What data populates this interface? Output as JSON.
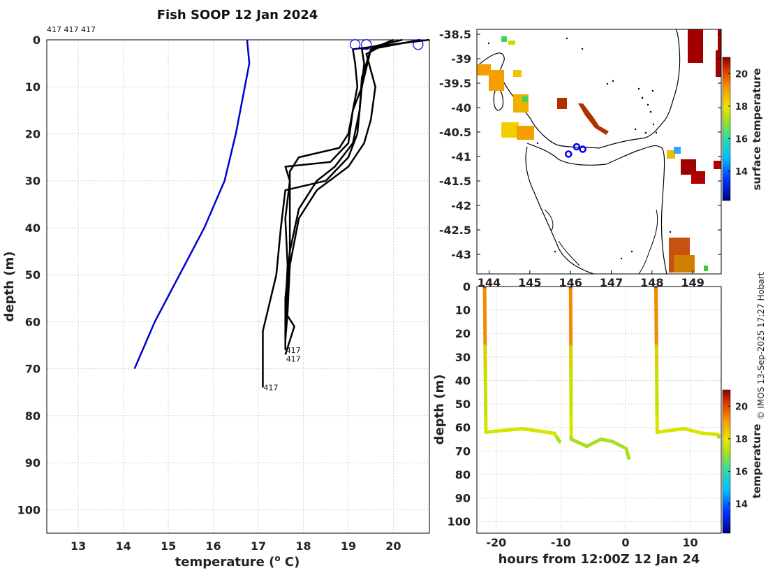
{
  "title": "Fish SOOP 12 Jan 2024",
  "top_label": "417 417 417",
  "copyright": "© IMOS 13-Sep-2025 17:27 Hobart",
  "colors": {
    "profile": "#000000",
    "climatology": "#0000d0",
    "marker": "#0000ee",
    "land": "#000000"
  },
  "chart_data": [
    {
      "name": "temperature-profiles",
      "type": "line",
      "title": "Fish SOOP 12 Jan 2024",
      "xlabel": "temperature (",
      "xlabel_sup": "o",
      "xlabel_end": " C)",
      "ylabel": "depth (m)",
      "xlim": [
        12.3,
        20.8
      ],
      "ylim": [
        105,
        0
      ],
      "xticks": [
        13,
        14,
        15,
        16,
        17,
        18,
        19,
        20
      ],
      "yticks": [
        0,
        10,
        20,
        30,
        40,
        50,
        60,
        70,
        80,
        90,
        100
      ],
      "grid": true,
      "climatology": {
        "name": "climatology",
        "temp": [
          16.75,
          16.8,
          16.7,
          16.5,
          16.25,
          15.8,
          15.25,
          14.7,
          14.25
        ],
        "depth": [
          0,
          5,
          10,
          20,
          30,
          40,
          50,
          60,
          70
        ]
      },
      "series": [
        {
          "name": "profile-1",
          "label": "417",
          "temp": [
            20.2,
            19.3,
            19.35,
            19.3,
            19.1,
            19.0,
            18.8,
            17.9,
            17.7,
            17.7,
            17.7,
            17.65,
            17.6,
            17.6
          ],
          "depth": [
            0,
            2,
            5,
            10,
            15,
            20,
            23,
            25,
            28,
            35,
            45,
            55,
            62,
            66
          ]
        },
        {
          "name": "profile-2",
          "label": "417",
          "temp": [
            20.8,
            19.1,
            19.15,
            19.2,
            19.1,
            19.0,
            18.6,
            17.6,
            17.7,
            17.6,
            17.65,
            17.6,
            17.8,
            17.6
          ],
          "depth": [
            0,
            2,
            5,
            10,
            15,
            22,
            26,
            27,
            30,
            38,
            48,
            58,
            61,
            67
          ]
        },
        {
          "name": "profile-3",
          "label": "417",
          "temp": [
            20.0,
            19.5,
            19.3,
            19.2,
            19.0,
            18.5,
            17.6,
            17.5,
            17.4,
            17.2,
            17.1,
            17.1,
            17.1
          ],
          "depth": [
            0,
            2,
            10,
            20,
            25,
            30,
            32,
            40,
            50,
            58,
            62,
            68,
            74
          ]
        },
        {
          "name": "profile-4",
          "label": "",
          "temp": [
            20.6,
            19.5,
            19.3,
            19.25,
            19.1,
            18.7,
            18.3,
            17.9,
            17.7,
            17.6,
            17.6
          ],
          "depth": [
            0,
            2,
            8,
            15,
            22,
            27,
            30,
            36,
            45,
            55,
            63
          ]
        },
        {
          "name": "profile-5",
          "label": "",
          "temp": [
            20.0,
            19.4,
            19.6,
            19.5,
            19.35,
            19.0,
            18.3,
            17.9,
            17.7,
            17.65,
            17.6
          ],
          "depth": [
            0,
            3,
            10,
            17,
            22,
            27,
            32,
            38,
            48,
            58,
            64
          ]
        }
      ],
      "markers": [
        {
          "temp": 19.15,
          "depth": 1
        },
        {
          "temp": 19.4,
          "depth": 1
        },
        {
          "temp": 20.55,
          "depth": 1
        }
      ]
    },
    {
      "name": "surface-temperature-map",
      "type": "heatmap",
      "xlim": [
        143.7,
        149.7
      ],
      "ylim": [
        -43.4,
        -38.4
      ],
      "xticks": [
        144,
        145,
        146,
        147,
        148,
        149
      ],
      "yticks": [
        -38.5,
        -39,
        -39.5,
        -40,
        -40.5,
        -41,
        -41.5,
        -42,
        -42.5,
        -43
      ],
      "colorbar": {
        "label": "surface temperature",
        "range": [
          12.2,
          21
        ],
        "ticks": [
          14,
          16,
          18,
          20
        ]
      },
      "positions": [
        {
          "lon": 145.95,
          "lat": -40.95
        },
        {
          "lon": 146.15,
          "lat": -40.8
        },
        {
          "lon": 146.3,
          "lat": -40.85
        }
      ]
    },
    {
      "name": "depth-time-section",
      "type": "scatter",
      "xlabel": "hours from 12:00Z 12 Jan 24",
      "ylabel": "depth (m)",
      "xlim": [
        -23,
        14.8
      ],
      "ylim": [
        105,
        0
      ],
      "xticks": [
        -20,
        -10,
        0,
        10
      ],
      "yticks": [
        0,
        10,
        20,
        30,
        40,
        50,
        60,
        70,
        80,
        90,
        100
      ],
      "colorbar": {
        "label": "temperature",
        "range": [
          12.2,
          21
        ],
        "ticks": [
          14,
          16,
          18,
          20
        ]
      },
      "tows": [
        {
          "t": [
            -21.8,
            -21.6,
            -16,
            -11,
            -10.2
          ],
          "depth": [
            0,
            62,
            60.5,
            62.5,
            66
          ]
        },
        {
          "t": [
            -8.5,
            -8.4,
            -6,
            -3.8,
            -2,
            0.1,
            0.5
          ],
          "depth": [
            0,
            65,
            68,
            65,
            66,
            69,
            73
          ]
        },
        {
          "t": [
            4.7,
            4.9,
            9,
            12,
            14.3,
            14.4
          ],
          "depth": [
            0,
            62,
            60.5,
            62.5,
            63,
            64
          ]
        }
      ]
    }
  ]
}
